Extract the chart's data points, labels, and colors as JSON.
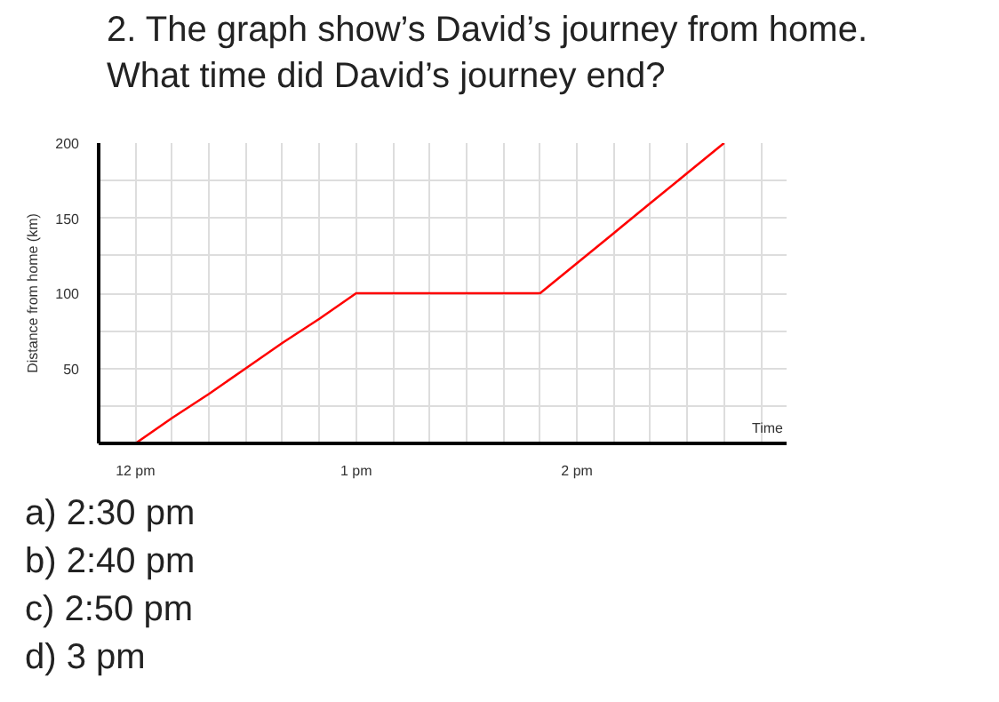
{
  "chart_data": {
    "type": "line",
    "title": "2. The graph show’s David’s journey from home.\nWhat time did David’s journey end?",
    "xlabel": "Time",
    "ylabel": "Distance from home (km)",
    "categories": [
      null,
      "12 pm",
      null,
      null,
      null,
      null,
      null,
      "1 pm",
      null,
      null,
      null,
      null,
      null,
      "2 pm",
      null,
      null,
      null,
      null,
      null
    ],
    "series": [
      {
        "color": "#ff0000",
        "values": [
          null,
          0,
          17,
          33,
          50,
          67,
          83,
          100,
          100,
          100,
          100,
          100,
          100,
          120,
          140,
          160,
          180,
          200,
          null
        ]
      }
    ],
    "ylim": [
      0,
      200
    ],
    "yticks": [
      {
        "value": 25,
        "label": null
      },
      50,
      {
        "value": 75,
        "label": null
      },
      100,
      {
        "value": 125,
        "label": null
      },
      150,
      {
        "value": 175,
        "label": null
      },
      200
    ],
    "grid": true,
    "marker": "none",
    "line_style": "solid",
    "annotations": [
      "a) 2:30 pm",
      "b) 2:40 pm",
      "c) 2:50 pm",
      "d) 3 pm"
    ]
  }
}
